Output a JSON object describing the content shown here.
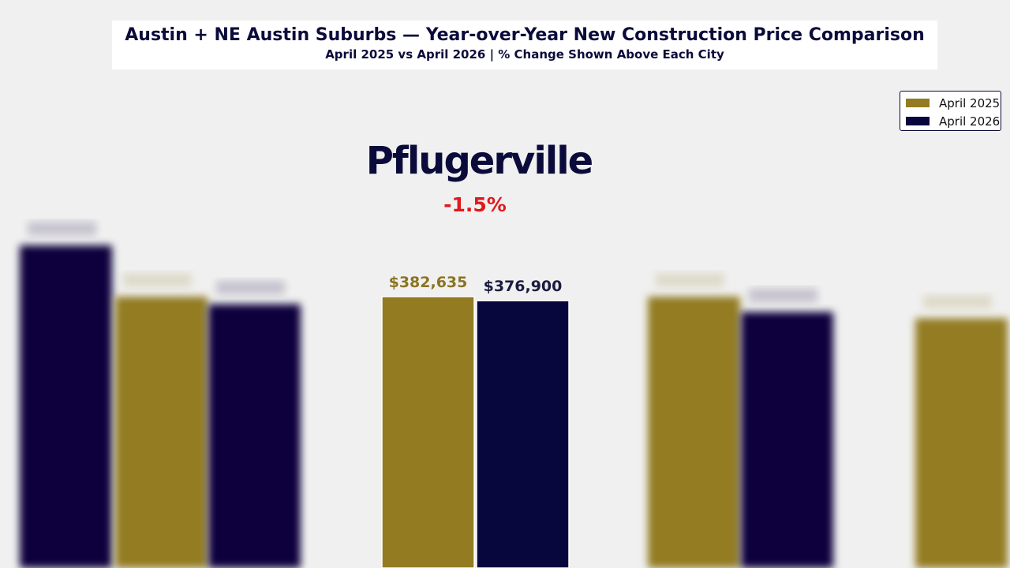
{
  "chart_data": {
    "type": "bar",
    "title": "Austin + NE Austin Suburbs — Year-over-Year New Construction Price Comparison",
    "subtitle": "April 2025 vs April 2026  |  % Change Shown Above Each City",
    "focused_city": {
      "name": "Pflugerville",
      "pct_change": "-1.5%",
      "pct_change_color": "#e0191c"
    },
    "categories": [
      "Pflugerville"
    ],
    "series": [
      {
        "name": "April 2025",
        "color": "#937b22",
        "values": [
          382635
        ],
        "value_labels": [
          "$382,635"
        ]
      },
      {
        "name": "April 2026",
        "color": "#07063d",
        "values": [
          376900
        ],
        "value_labels": [
          "$376,900"
        ]
      }
    ],
    "background_bars": [
      {
        "group": "left-edge",
        "values": [
          null,
          455000
        ]
      },
      {
        "group": "left",
        "values": [
          382635,
          372000
        ]
      },
      {
        "group": "right",
        "values": [
          382635,
          361000
        ]
      },
      {
        "group": "right-edge",
        "values": [
          352000,
          null
        ]
      }
    ],
    "legend": {
      "position": "top-right",
      "entries": [
        "April 2025",
        "April 2026"
      ]
    },
    "grid": false
  }
}
